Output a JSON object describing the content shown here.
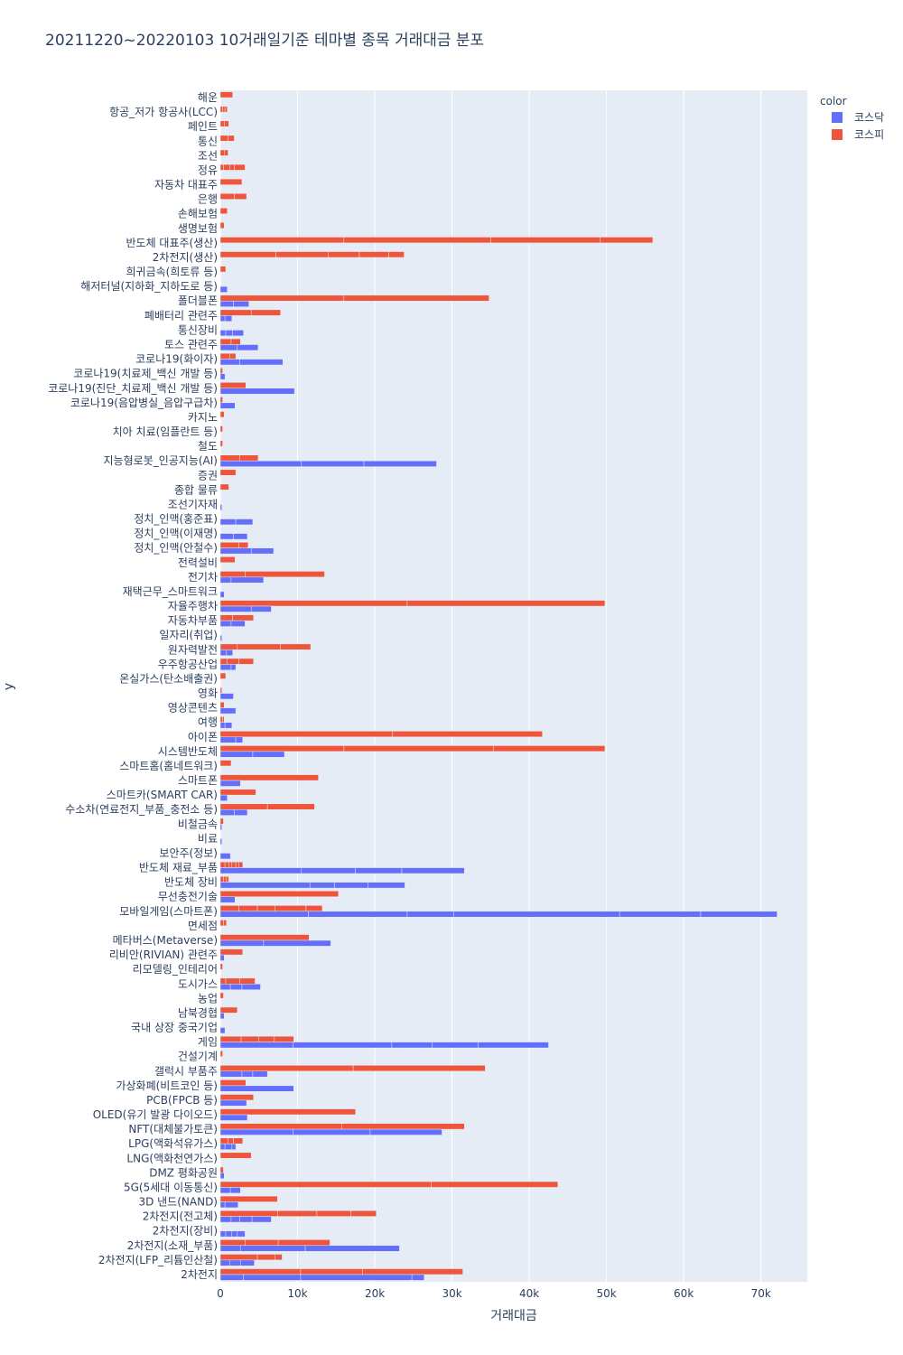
{
  "chart_data": {
    "type": "bar",
    "orientation": "horizontal",
    "barmode": "group, stacked by stock within each theme",
    "title": "20211220~20220103 10거래일기준 테마별 종목 거래대금 분포",
    "xlabel": "거래대금",
    "ylabel": "y",
    "xlim": [
      0,
      76000
    ],
    "xticks": [
      0,
      10000,
      20000,
      30000,
      40000,
      50000,
      60000,
      70000
    ],
    "xtick_labels": [
      "0",
      "10k",
      "20k",
      "30k",
      "40k",
      "50k",
      "60k",
      "70k"
    ],
    "legend": {
      "title": "color",
      "placement": "top-right"
    },
    "grid": true,
    "series": [
      {
        "name": "코스닥",
        "color": "#636efa"
      },
      {
        "name": "코스피",
        "color": "#ef553b"
      }
    ],
    "categories": [
      {
        "name": "해운",
        "코스닥": [],
        "코스피": [
          1600
        ]
      },
      {
        "name": "항공_저가 항공사(LCC)",
        "코스닥": [],
        "코스피": [
          300,
          300,
          300
        ]
      },
      {
        "name": "페인트",
        "코스닥": [],
        "코스피": [
          500,
          600
        ]
      },
      {
        "name": "통신",
        "코스닥": [],
        "코스피": [
          1000,
          800
        ]
      },
      {
        "name": "조선",
        "코스닥": [],
        "코스피": [
          500,
          500
        ]
      },
      {
        "name": "정유",
        "코스닥": [],
        "코스피": [
          400,
          800,
          600,
          1400
        ]
      },
      {
        "name": "자동차 대표주",
        "코스닥": [],
        "코스피": [
          2800
        ]
      },
      {
        "name": "은행",
        "코스닥": [],
        "코스피": [
          1800,
          1600
        ]
      },
      {
        "name": "손해보험",
        "코스닥": [],
        "코스피": [
          900
        ]
      },
      {
        "name": "생명보험",
        "코스닥": [],
        "코스피": [
          500
        ]
      },
      {
        "name": "반도체 대표주(생산)",
        "코스닥": [],
        "코스피": [
          16000,
          19000,
          14200,
          6800
        ]
      },
      {
        "name": "2차전지(생산)",
        "코스닥": [],
        "코스피": [
          7200,
          6800,
          4000,
          3800,
          2000
        ]
      },
      {
        "name": "희귀금속(희토류 등)",
        "코스닥": [],
        "코스피": [
          700
        ]
      },
      {
        "name": "해저터널(지하화_지하도로 등)",
        "코스닥": [
          900
        ],
        "코스피": []
      },
      {
        "name": "폴더블폰",
        "코스닥": [
          1700,
          2000
        ],
        "코스피": [
          16000,
          18800
        ]
      },
      {
        "name": "폐배터리 관련주",
        "코스닥": [
          600,
          900
        ],
        "코스피": [
          4000,
          3800
        ]
      },
      {
        "name": "통신장비",
        "코스닥": [
          700,
          900,
          1400
        ],
        "코스피": []
      },
      {
        "name": "토스 관련주",
        "코스닥": [
          2200,
          2700
        ],
        "코스피": [
          1400,
          1200
        ]
      },
      {
        "name": "코로나19(화이자)",
        "코스닥": [
          2500,
          5600
        ],
        "코스피": [
          1200,
          800
        ]
      },
      {
        "name": "코로나19(치료제_백신 개발 등)",
        "코스닥": [
          600
        ],
        "코스피": [
          300
        ]
      },
      {
        "name": "코로나19(진단_치료제_백신 개발 등)",
        "코스닥": [
          9600
        ],
        "코스피": [
          3300
        ]
      },
      {
        "name": "코로나19(음압병실_음압구급차)",
        "코스닥": [
          1900
        ],
        "코스피": [
          300
        ]
      },
      {
        "name": "카지노",
        "코스닥": [],
        "코스피": [
          500
        ]
      },
      {
        "name": "치아 치료(임플란트 등)",
        "코스닥": [],
        "코스피": [
          300
        ]
      },
      {
        "name": "철도",
        "코스닥": [],
        "코스피": [
          300
        ]
      },
      {
        "name": "지능형로봇_인공지능(AI)",
        "코스닥": [
          10500,
          8100,
          9400
        ],
        "코스피": [
          2500,
          2400
        ]
      },
      {
        "name": "증권",
        "코스닥": [],
        "코스피": [
          2000
        ]
      },
      {
        "name": "종합 물류",
        "코스닥": [],
        "코스피": [
          1100
        ]
      },
      {
        "name": "조선기자재",
        "코스닥": [
          200
        ],
        "코스피": []
      },
      {
        "name": "정치_인맥(홍준표)",
        "코스닥": [
          2000,
          2200
        ],
        "코스피": []
      },
      {
        "name": "정치_인맥(이재명)",
        "코스닥": [
          1700,
          1800
        ],
        "코스피": []
      },
      {
        "name": "정치_인맥(안철수)",
        "코스닥": [
          4000,
          2900
        ],
        "코스피": [
          2400,
          1200
        ]
      },
      {
        "name": "전력설비",
        "코스닥": [],
        "코스피": [
          1900
        ]
      },
      {
        "name": "전기차",
        "코스닥": [
          1400,
          4200
        ],
        "코스피": [
          3200,
          10300
        ]
      },
      {
        "name": "재택근무_스마트워크",
        "코스닥": [
          500
        ],
        "코스피": []
      },
      {
        "name": "자율주행차",
        "코스닥": [
          4000,
          2600
        ],
        "코스피": [
          24200,
          25600
        ]
      },
      {
        "name": "자동차부품",
        "코스닥": [
          1400,
          1800
        ],
        "코스피": [
          1600,
          2700
        ]
      },
      {
        "name": "일자리(취업)",
        "코스닥": [
          200
        ],
        "코스피": []
      },
      {
        "name": "원자력발전",
        "코스닥": [
          800,
          800
        ],
        "코스피": [
          2200,
          5600,
          3900
        ]
      },
      {
        "name": "우주항공산업",
        "코스닥": [
          1400,
          600
        ],
        "코스피": [
          900,
          1500,
          1900
        ]
      },
      {
        "name": "온실가스(탄소배출권)",
        "코스닥": [],
        "코스피": [
          700
        ]
      },
      {
        "name": "영화",
        "코스닥": [
          1700
        ],
        "코스피": [
          200
        ]
      },
      {
        "name": "영상콘텐츠",
        "코스닥": [
          2000
        ],
        "코스피": [
          500
        ]
      },
      {
        "name": "여행",
        "코스닥": [
          600,
          900
        ],
        "코스피": [
          300,
          200
        ]
      },
      {
        "name": "아이폰",
        "코스닥": [
          2000,
          900
        ],
        "코스피": [
          22300,
          19400
        ]
      },
      {
        "name": "시스템반도체",
        "코스닥": [
          4200,
          4100
        ],
        "코스피": [
          16000,
          19400,
          14400
        ]
      },
      {
        "name": "스마트홈(홈네트워크)",
        "코스닥": [],
        "코스피": [
          1400
        ]
      },
      {
        "name": "스마트폰",
        "코스닥": [
          2600
        ],
        "코스피": [
          12700
        ]
      },
      {
        "name": "스마트카(SMART CAR)",
        "코스닥": [
          900
        ],
        "코스피": [
          4600
        ]
      },
      {
        "name": "수소차(연료전지_부품_충전소 등)",
        "코스닥": [
          1800,
          1700
        ],
        "코스피": [
          6100,
          6100
        ]
      },
      {
        "name": "비철금속",
        "코스닥": [
          200
        ],
        "코스피": [
          400
        ]
      },
      {
        "name": "비료",
        "코스닥": [
          200
        ],
        "코스피": []
      },
      {
        "name": "보안주(정보)",
        "코스닥": [
          1300
        ],
        "코스피": []
      },
      {
        "name": "반도체 재료_부품",
        "코스닥": [
          10500,
          7000,
          6000,
          8100
        ],
        "코스피": [
          600,
          500,
          400,
          500,
          400,
          500
        ]
      },
      {
        "name": "반도체 장비",
        "코스닥": [
          11600,
          3200,
          4300,
          4800
        ],
        "코스피": [
          400,
          400,
          300
        ]
      },
      {
        "name": "무선충전기술",
        "코스닥": [
          1900
        ],
        "코스피": [
          15300
        ]
      },
      {
        "name": "모바일게임(스마트폰)",
        "코스닥": [
          11400,
          12800,
          6000,
          21500,
          10500,
          9900
        ],
        "코스피": [
          2400,
          2400,
          2300,
          4000,
          2100
        ]
      },
      {
        "name": "면세점",
        "코스닥": [],
        "코스피": [
          400,
          400
        ]
      },
      {
        "name": "메타버스(Metaverse)",
        "코스닥": [
          5600,
          8700
        ],
        "코스피": [
          11500
        ]
      },
      {
        "name": "리비안(RIVIAN) 관련주",
        "코스닥": [
          500
        ],
        "코스피": [
          2900
        ]
      },
      {
        "name": "리모델링_인테리어",
        "코스닥": [],
        "코스피": [
          300
        ]
      },
      {
        "name": "도시가스",
        "코스닥": [
          1300,
          1500,
          2400
        ],
        "코스피": [
          700,
          1800,
          2000
        ]
      },
      {
        "name": "농업",
        "코스닥": [],
        "코스피": [
          400
        ]
      },
      {
        "name": "남북경협",
        "코스닥": [
          500
        ],
        "코스피": [
          2200
        ]
      },
      {
        "name": "국내 상장 중국기업",
        "코스닥": [
          600
        ],
        "코스피": []
      },
      {
        "name": "게임",
        "코스닥": [
          9400,
          12800,
          5200,
          6000,
          9100
        ],
        "코스피": [
          2700,
          2300,
          2000,
          2500
        ]
      },
      {
        "name": "건설기계",
        "코스닥": [],
        "코스피": [
          300
        ]
      },
      {
        "name": "갤럭시 부품주",
        "코스닥": [
          2800,
          1400,
          1900
        ],
        "코스피": [
          17200,
          17100
        ]
      },
      {
        "name": "가상화폐(비트코인 등)",
        "코스닥": [
          9500
        ],
        "코스피": [
          3300
        ]
      },
      {
        "name": "PCB(FPCB 등)",
        "코스닥": [
          3400
        ],
        "코스피": [
          4300
        ]
      },
      {
        "name": "OLED(유기 발광 다이오드)",
        "코스닥": [
          3500
        ],
        "코스피": [
          17500
        ]
      },
      {
        "name": "NFT(대체불가토큰)",
        "코스닥": [
          9400,
          10000,
          9300
        ],
        "코스피": [
          15700,
          15900
        ]
      },
      {
        "name": "LPG(액화석유가스)",
        "코스닥": [
          600,
          900,
          500
        ],
        "코스피": [
          1000,
          700,
          1200
        ]
      },
      {
        "name": "LNG(액화천연가스)",
        "코스닥": [],
        "코스피": [
          4000
        ]
      },
      {
        "name": "DMZ 평화공원",
        "코스닥": [
          500
        ],
        "코스피": [
          400
        ]
      },
      {
        "name": "5G(5세대 이동통신)",
        "코스닥": [
          1300,
          1300
        ],
        "코스피": [
          27300,
          16400
        ]
      },
      {
        "name": "3D 낸드(NAND)",
        "코스닥": [
          600,
          1700
        ],
        "코스피": [
          7400
        ]
      },
      {
        "name": "2차전지(전고체)",
        "코스닥": [
          1400,
          1100,
          1600,
          2500
        ],
        "코스피": [
          7400,
          5100,
          4400,
          3300
        ]
      },
      {
        "name": "2차전지(장비)",
        "코스닥": [
          700,
          800,
          700,
          1000
        ],
        "코스피": []
      },
      {
        "name": "2차전지(소재_부품)",
        "코스닥": [
          2600,
          8400,
          12200
        ],
        "코스피": [
          3200,
          4300,
          6700
        ]
      },
      {
        "name": "2차전지(LFP_리튬인산철)",
        "코스닥": [
          1200,
          1400,
          1800
        ],
        "코스피": [
          4800,
          2300,
          900
        ]
      },
      {
        "name": "2차전지",
        "코스닥": [
          3000,
          7400,
          14400,
          1600
        ],
        "코스피": [
          10400,
          8000,
          13000
        ]
      }
    ]
  }
}
